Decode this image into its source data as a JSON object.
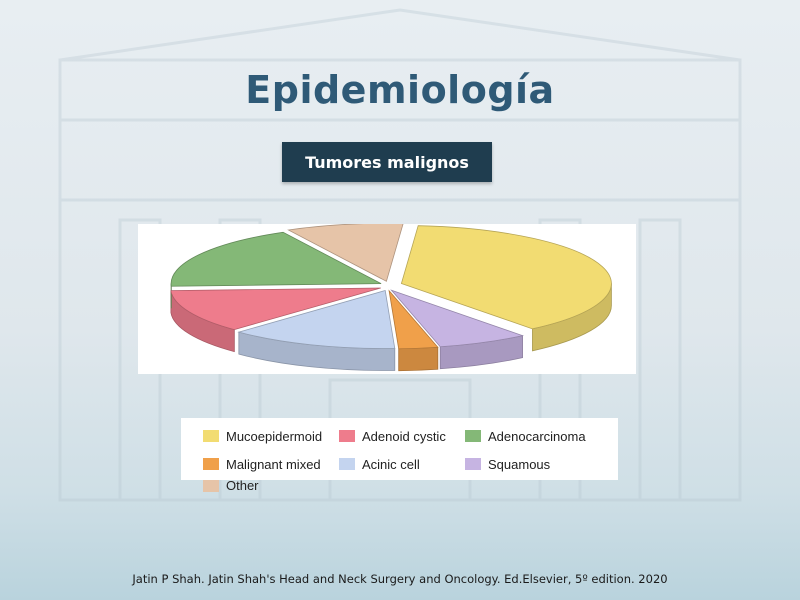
{
  "slide": {
    "title": "Epidemiología",
    "subtitle": "Tumores malignos",
    "citation": "Jatin P Shah. Jatin Shah's Head and Neck Surgery and Oncology. Ed.Elsevier, 5º edition. 2020"
  },
  "chart_data": {
    "type": "pie",
    "title": "",
    "legend_position": "bottom",
    "series": [
      {
        "name": "Mucoepidermoid",
        "value": 38,
        "color": "#f2dc72"
      },
      {
        "name": "Squamous",
        "value": 7,
        "color": "#c6b4e2"
      },
      {
        "name": "Malignant mixed",
        "value": 3,
        "color": "#f0a04a"
      },
      {
        "name": "Acinic cell",
        "value": 13,
        "color": "#c4d4ef"
      },
      {
        "name": "Adenoid cystic",
        "value": 12,
        "color": "#ee7c8c"
      },
      {
        "name": "Adenocarcinoma",
        "value": 18,
        "color": "#84b877"
      },
      {
        "name": "Other",
        "value": 9,
        "color": "#e6c4a8"
      }
    ],
    "legend_order": [
      "Mucoepidermoid",
      "Adenoid cystic",
      "Adenocarcinoma",
      "Malignant mixed",
      "Acinic cell",
      "Squamous",
      "Other"
    ]
  }
}
